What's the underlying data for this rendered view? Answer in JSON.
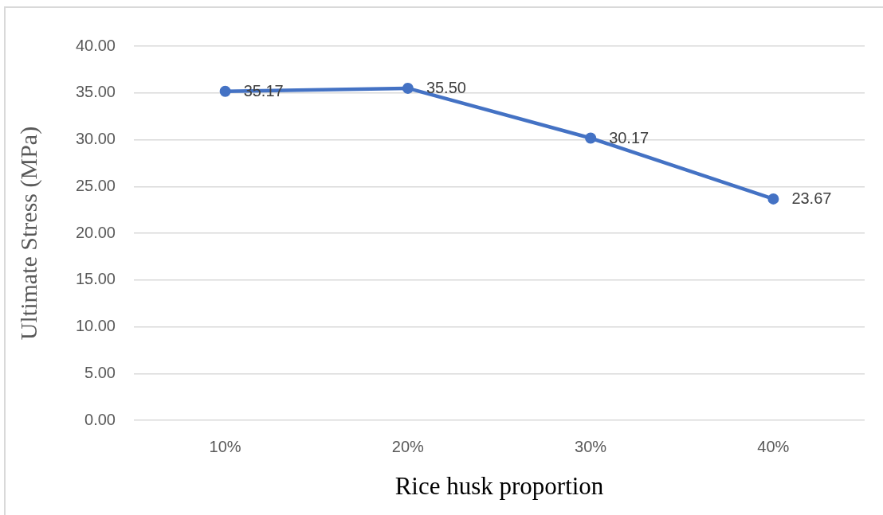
{
  "chart_data": {
    "type": "line",
    "xlabel": "Rice husk proportion",
    "ylabel": "Ultimate Stress (MPa)",
    "categories": [
      "10%",
      "20%",
      "30%",
      "40%"
    ],
    "values": [
      35.17,
      35.5,
      30.17,
      23.67
    ],
    "color": "#4472c4",
    "value_labels": [
      "35.17",
      "35.50",
      "30.17",
      "23.67"
    ],
    "ylim": [
      0,
      40
    ],
    "yticks": [
      {
        "value": 0,
        "label": "0.00"
      },
      {
        "value": 5,
        "label": "5.00"
      },
      {
        "value": 10,
        "label": "10.00"
      },
      {
        "value": 15,
        "label": "15.00"
      },
      {
        "value": 20,
        "label": "20.00"
      },
      {
        "value": 25,
        "label": "25.00"
      },
      {
        "value": 30,
        "label": "30.00"
      },
      {
        "value": 35,
        "label": "35.00"
      },
      {
        "value": 40,
        "label": "40.00"
      }
    ],
    "grid": "y",
    "marker": "circle",
    "line_style": "solid"
  }
}
